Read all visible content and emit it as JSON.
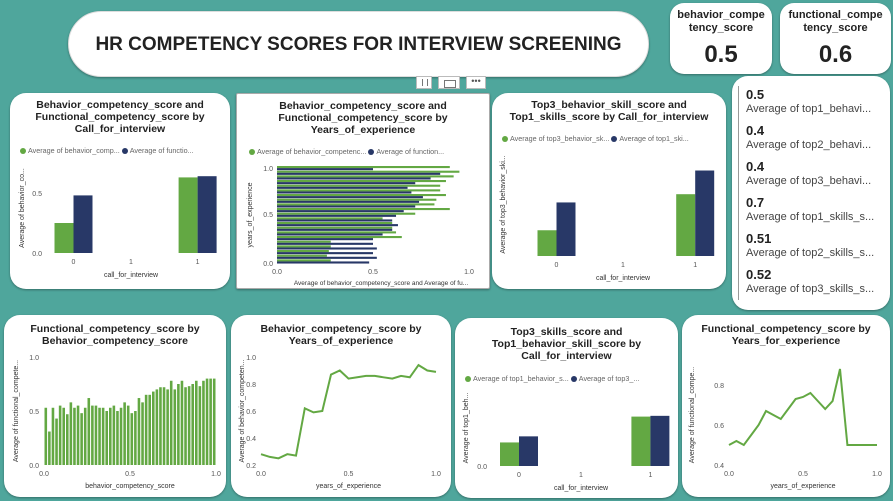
{
  "colors": {
    "green": "#63a843",
    "navy": "#283867",
    "bg": "#4fa69c"
  },
  "header": {
    "title": "HR COMPETENCY SCORES FOR INTERVIEW SCREENING"
  },
  "kpis": [
    {
      "label_line1": "behavior_compe",
      "label_line2": "tency_score",
      "value": "0.5"
    },
    {
      "label_line1": "functional_compe",
      "label_line2": "tency_score",
      "value": "0.6"
    }
  ],
  "toolbar_icons": [
    "filter-icon",
    "focus-mode-icon",
    "more-options-icon"
  ],
  "multirow": [
    {
      "value": "0.5",
      "label": "Average of top1_behavi..."
    },
    {
      "value": "0.4",
      "label": "Average of top2_behavi..."
    },
    {
      "value": "0.4",
      "label": "Average of top3_behavi..."
    },
    {
      "value": "0.7",
      "label": "Average of top1_skills_s..."
    },
    {
      "value": "0.51",
      "label": "Average of top2_skills_s..."
    },
    {
      "value": "0.52",
      "label": "Average of top3_skills_s..."
    }
  ],
  "chart_data": [
    {
      "id": "c1",
      "type": "bar",
      "title": [
        "Behavior_competency_score and",
        "Functional_competency_score by",
        "Call_for_interview"
      ],
      "legend": [
        "Average of behavior_comp...",
        "Average of functio..."
      ],
      "xlabel": "call_for_interview",
      "ylabel": "Average of behavior_co...",
      "categories": [
        "0",
        "1"
      ],
      "x_ticks": [
        "0",
        "1",
        "1"
      ],
      "y_ticks": [
        "0.0",
        "0.5"
      ],
      "ylim": [
        0,
        0.75
      ],
      "series": [
        {
          "name": "Average of behavior_comp...",
          "values": [
            0.25,
            0.63
          ]
        },
        {
          "name": "Average of functio...",
          "values": [
            0.48,
            0.64
          ]
        }
      ]
    },
    {
      "id": "c2",
      "type": "bar",
      "orientation": "horizontal",
      "title": [
        "Behavior_competency_score and",
        "Functional_competency_score by",
        "Years_of_experience"
      ],
      "legend": [
        "Average of behavior_competenc...",
        "Average of function..."
      ],
      "xlabel": "Average of behavior_competency_score and Average of fu...",
      "ylabel": "years_of_experience",
      "x_ticks": [
        "0.0",
        "0.5",
        "1.0"
      ],
      "y_ticks": [
        "1.0",
        "0.5",
        "0.0"
      ],
      "xlim": [
        0,
        1
      ],
      "categories": [
        1.0,
        0.95,
        0.9,
        0.85,
        0.8,
        0.75,
        0.7,
        0.65,
        0.6,
        0.55,
        0.5,
        0.45,
        0.4,
        0.35,
        0.3,
        0.25,
        0.2,
        0.15,
        0.1,
        0.05,
        0.0
      ],
      "series": [
        {
          "name": "Average of behavior_competenc...",
          "values": [
            0.9,
            0.95,
            0.92,
            0.88,
            0.85,
            0.85,
            0.88,
            0.83,
            0.82,
            0.9,
            0.72,
            0.55,
            0.6,
            0.6,
            0.62,
            0.65,
            0.28,
            0.28,
            0.27,
            0.26,
            0.28
          ]
        },
        {
          "name": "Average of function...",
          "values": [
            0.5,
            0.85,
            0.8,
            0.72,
            0.68,
            0.7,
            0.76,
            0.74,
            0.72,
            0.66,
            0.62,
            0.6,
            0.63,
            0.6,
            0.55,
            0.5,
            0.5,
            0.52,
            0.5,
            0.52,
            0.48
          ]
        }
      ]
    },
    {
      "id": "c3",
      "type": "bar",
      "title": [
        "Top3_behavior_skill_score and",
        "Top1_skills_score by Call_for_interview"
      ],
      "legend": [
        "Average of top3_behavior_sk...",
        "Average of top1_ski..."
      ],
      "xlabel": "call_for_interview",
      "ylabel": "Average of top3_behavior_ski...",
      "categories": [
        "0",
        "1"
      ],
      "x_ticks": [
        "0",
        "1",
        "1"
      ],
      "y_ticks": [],
      "ylim": [
        0,
        1
      ],
      "series": [
        {
          "name": "Average of top3_behavior_sk...",
          "values": [
            0.25,
            0.6
          ]
        },
        {
          "name": "Average of top1_ski...",
          "values": [
            0.52,
            0.83
          ]
        }
      ]
    },
    {
      "id": "c4",
      "type": "bar",
      "title": [
        "Functional_competency_score by",
        "Behavior_competency_score"
      ],
      "xlabel": "behavior_competency_score",
      "ylabel": "Average of functional_compete...",
      "x_ticks": [
        "0.0",
        "0.5",
        "1.0"
      ],
      "y_ticks": [
        "0.0",
        "0.5",
        "1.0"
      ],
      "ylim": [
        0,
        1
      ],
      "xlim": [
        0,
        1
      ],
      "values": [
        0.53,
        0.31,
        0.53,
        0.43,
        0.55,
        0.53,
        0.47,
        0.58,
        0.53,
        0.55,
        0.48,
        0.53,
        0.62,
        0.55,
        0.55,
        0.53,
        0.53,
        0.5,
        0.53,
        0.55,
        0.5,
        0.53,
        0.58,
        0.55,
        0.48,
        0.5,
        0.62,
        0.58,
        0.65,
        0.65,
        0.68,
        0.7,
        0.72,
        0.72,
        0.7,
        0.78,
        0.7,
        0.75,
        0.78,
        0.72,
        0.73,
        0.75,
        0.78,
        0.73,
        0.78,
        0.8,
        0.8,
        0.8
      ]
    },
    {
      "id": "c5",
      "type": "line",
      "title": [
        "Behavior_competency_score by",
        "Years_of_experience"
      ],
      "xlabel": "years_of_experience",
      "ylabel": "Average of behavior_competen...",
      "x_ticks": [
        "0.0",
        "0.5",
        "1.0"
      ],
      "y_ticks": [
        "0.2",
        "0.4",
        "0.6",
        "0.8",
        "1.0"
      ],
      "ylim": [
        0.2,
        1.0
      ],
      "xlim": [
        0,
        1
      ],
      "x": [
        0,
        0.05,
        0.1,
        0.15,
        0.2,
        0.25,
        0.3,
        0.35,
        0.4,
        0.45,
        0.5,
        0.55,
        0.6,
        0.65,
        0.7,
        0.75,
        0.8,
        0.85,
        0.9,
        0.95,
        1.0
      ],
      "y": [
        0.28,
        0.26,
        0.25,
        0.28,
        0.27,
        0.62,
        0.59,
        0.6,
        0.87,
        0.9,
        0.84,
        0.85,
        0.86,
        0.86,
        0.85,
        0.84,
        0.86,
        0.85,
        0.94,
        0.9,
        0.89
      ]
    },
    {
      "id": "c6",
      "type": "bar",
      "title": [
        "Top3_skills_score and",
        "Top1_behavior_skill_score by",
        "Call_for_interview"
      ],
      "legend": [
        "Average of top1_behavior_s...",
        "Average of top3_..."
      ],
      "xlabel": "call_for_interview",
      "ylabel": "Average of top1_beh...",
      "categories": [
        "0",
        "1"
      ],
      "x_ticks": [
        "0",
        "1",
        "1"
      ],
      "y_ticks": [
        "0.0"
      ],
      "ylim": [
        0,
        1
      ],
      "series": [
        {
          "name": "Average of top1_behavior_s...",
          "values": [
            0.31,
            0.65
          ]
        },
        {
          "name": "Average of top3_...",
          "values": [
            0.39,
            0.66
          ]
        }
      ]
    },
    {
      "id": "c7",
      "type": "line",
      "title": [
        "Functional_competency_score by",
        "Years_for_experience"
      ],
      "xlabel": "years_of_experience",
      "ylabel": "Average of functional_compe...",
      "x_ticks": [
        "0.0",
        "0.5",
        "1.0"
      ],
      "y_ticks": [
        "0.4",
        "0.6",
        "0.8"
      ],
      "ylim": [
        0.4,
        0.9
      ],
      "xlim": [
        0,
        1
      ],
      "x": [
        0,
        0.05,
        0.1,
        0.15,
        0.2,
        0.25,
        0.3,
        0.35,
        0.4,
        0.45,
        0.5,
        0.55,
        0.6,
        0.65,
        0.7,
        0.75,
        0.8,
        0.85,
        0.9,
        0.95,
        1.0
      ],
      "y": [
        0.5,
        0.52,
        0.5,
        0.55,
        0.6,
        0.67,
        0.65,
        0.63,
        0.68,
        0.73,
        0.74,
        0.76,
        0.72,
        0.68,
        0.72,
        0.88,
        0.5,
        0.5,
        0.5,
        0.5,
        0.5
      ]
    }
  ]
}
